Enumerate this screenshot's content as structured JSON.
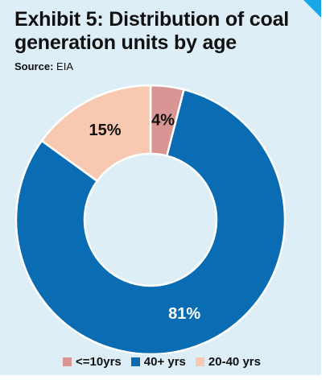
{
  "header": {
    "title": "Exhibit 5: Distribution of coal generation units by age",
    "source_label": "Source:",
    "source_value": "EIA"
  },
  "colors": {
    "background": "#ddeef6",
    "accent": "#1aa7e8"
  },
  "chart_data": {
    "type": "pie",
    "style": "donut",
    "title": "Exhibit 5: Distribution of coal generation units by age",
    "categories": [
      "<=10yrs",
      "40+ yrs",
      "20-40 yrs"
    ],
    "values": [
      4,
      81,
      15
    ],
    "data_labels": [
      "4%",
      "81%",
      "15%"
    ],
    "colors": [
      "#d99594",
      "#0a6db3",
      "#f6c9b0"
    ],
    "legend_position": "bottom",
    "start_angle_deg": 0,
    "direction": "clockwise"
  }
}
